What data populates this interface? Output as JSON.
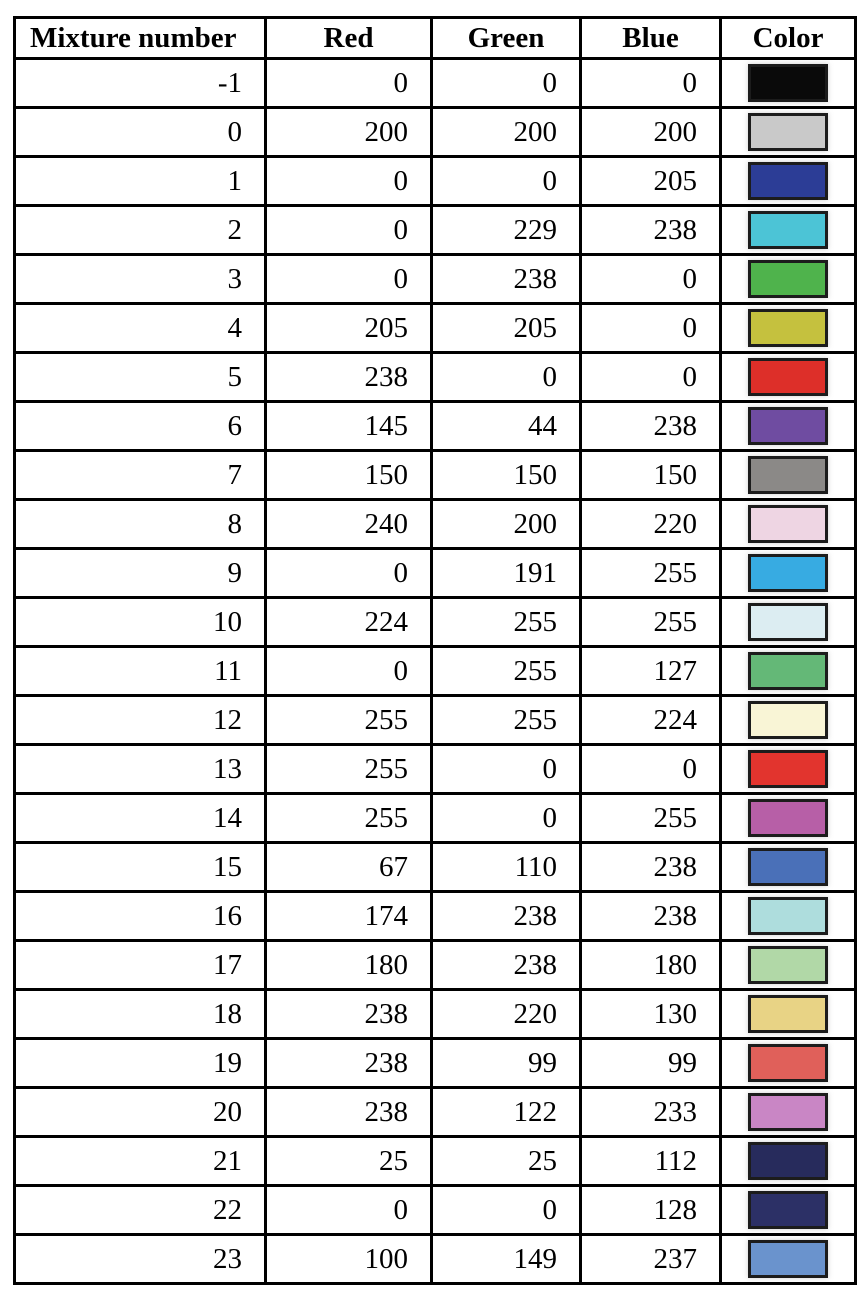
{
  "table": {
    "headers": [
      "Mixture number",
      "Red",
      "Green",
      "Blue",
      "Color"
    ],
    "swatch_border_color": "#1c1c1c",
    "grid_color": "#000000",
    "rows": [
      {
        "mixture": "-1",
        "red": "0",
        "green": "0",
        "blue": "0",
        "swatch_hex": "#0a0a0a"
      },
      {
        "mixture": "0",
        "red": "200",
        "green": "200",
        "blue": "200",
        "swatch_hex": "#c9c9c9"
      },
      {
        "mixture": "1",
        "red": "0",
        "green": "0",
        "blue": "205",
        "swatch_hex": "#2c3d96"
      },
      {
        "mixture": "2",
        "red": "0",
        "green": "229",
        "blue": "238",
        "swatch_hex": "#4cc4d6"
      },
      {
        "mixture": "3",
        "red": "0",
        "green": "238",
        "blue": "0",
        "swatch_hex": "#4fb34c"
      },
      {
        "mixture": "4",
        "red": "205",
        "green": "205",
        "blue": "0",
        "swatch_hex": "#c5c13e"
      },
      {
        "mixture": "5",
        "red": "238",
        "green": "0",
        "blue": "0",
        "swatch_hex": "#dd2f29"
      },
      {
        "mixture": "6",
        "red": "145",
        "green": "44",
        "blue": "238",
        "swatch_hex": "#6f4ca1"
      },
      {
        "mixture": "7",
        "red": "150",
        "green": "150",
        "blue": "150",
        "swatch_hex": "#8b8987"
      },
      {
        "mixture": "8",
        "red": "240",
        "green": "200",
        "blue": "220",
        "swatch_hex": "#eed5e3"
      },
      {
        "mixture": "9",
        "red": "0",
        "green": "191",
        "blue": "255",
        "swatch_hex": "#37abe2"
      },
      {
        "mixture": "10",
        "red": "224",
        "green": "255",
        "blue": "255",
        "swatch_hex": "#dcedf2"
      },
      {
        "mixture": "11",
        "red": "0",
        "green": "255",
        "blue": "127",
        "swatch_hex": "#64b877"
      },
      {
        "mixture": "12",
        "red": "255",
        "green": "255",
        "blue": "224",
        "swatch_hex": "#f9f5d6"
      },
      {
        "mixture": "13",
        "red": "255",
        "green": "0",
        "blue": "0",
        "swatch_hex": "#e2342e"
      },
      {
        "mixture": "14",
        "red": "255",
        "green": "0",
        "blue": "255",
        "swatch_hex": "#b75fa7"
      },
      {
        "mixture": "15",
        "red": "67",
        "green": "110",
        "blue": "238",
        "swatch_hex": "#4a70b8"
      },
      {
        "mixture": "16",
        "red": "174",
        "green": "238",
        "blue": "238",
        "swatch_hex": "#aedddd"
      },
      {
        "mixture": "17",
        "red": "180",
        "green": "238",
        "blue": "180",
        "swatch_hex": "#b1d8a7"
      },
      {
        "mixture": "18",
        "red": "238",
        "green": "220",
        "blue": "130",
        "swatch_hex": "#e8d385"
      },
      {
        "mixture": "19",
        "red": "238",
        "green": "99",
        "blue": "99",
        "swatch_hex": "#e0605a"
      },
      {
        "mixture": "20",
        "red": "238",
        "green": "122",
        "blue": "233",
        "swatch_hex": "#c986c5"
      },
      {
        "mixture": "21",
        "red": "25",
        "green": "25",
        "blue": "112",
        "swatch_hex": "#272b5c"
      },
      {
        "mixture": "22",
        "red": "0",
        "green": "0",
        "blue": "128",
        "swatch_hex": "#2c3066"
      },
      {
        "mixture": "23",
        "red": "100",
        "green": "149",
        "blue": "237",
        "swatch_hex": "#6a93cd"
      }
    ]
  }
}
